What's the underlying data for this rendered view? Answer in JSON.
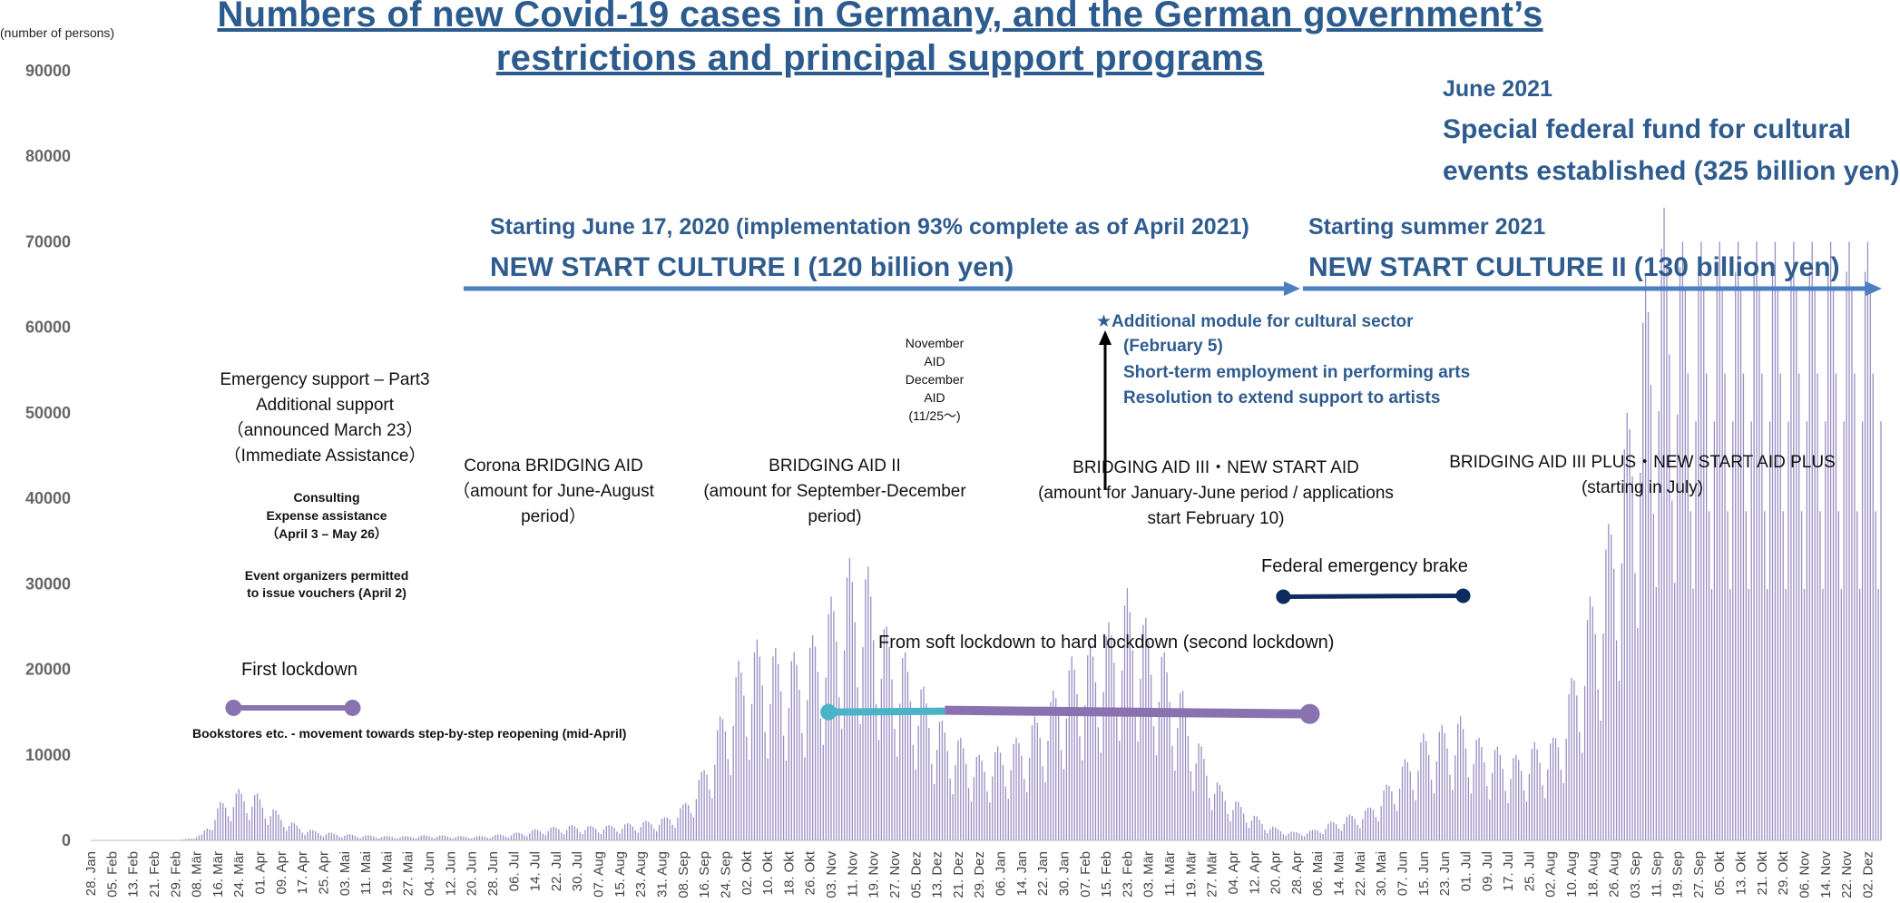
{
  "title_line1": "Numbers of new Covid-19 cases in Germany, and the German government’s",
  "title_line2": "restrictions and principal support programs",
  "y_unit_label": "(number of persons)",
  "colors": {
    "bars": "#9b8fc4",
    "title": "#2c5b8e",
    "program_text": "#2f5c8f",
    "arrow": "#4a7fc1",
    "lockdown_purple": "#8a72b0",
    "soft_lockdown_teal": "#4bb3c8",
    "emergency_brake": "#0d2b5e",
    "axis_text": "#666666"
  },
  "annotations": {
    "nsc1_line1": "Starting June 17, 2020 (implementation 93% complete as of April 2021)",
    "nsc1_line2": "NEW START CULTURE I (120 billion yen)",
    "nsc2_line1": "Starting summer 2021",
    "nsc2_line2": "NEW START CULTURE II (130 billion yen)",
    "fund_line1": "June 2021",
    "fund_line2": "Special federal fund for cultural",
    "fund_line3": "events established (325 billion yen)",
    "module_line1": "★Additional module for cultural sector",
    "module_line2": "(February 5)",
    "module_line3": "Short-term employment in performing arts",
    "module_line4": "Resolution to extend support to artists",
    "nov_aid_1": "November",
    "nov_aid_2": "AID",
    "nov_aid_3": "December",
    "nov_aid_4": "AID",
    "nov_aid_5": "(11/25～)",
    "emerg_1": "Emergency support – Part3",
    "emerg_2": "Additional support",
    "emerg_3": "（announced March 23）",
    "emerg_4": "（Immediate Assistance）",
    "consult_1": "Consulting",
    "consult_2": "Expense assistance",
    "consult_3": "（April 3 – May 26）",
    "vouch_1": "Event organizers permitted",
    "vouch_2": "to issue vouchers (April 2)",
    "corona_1": "Corona BRIDGING AID",
    "corona_2": "（amount for June-August",
    "corona_3": "period）",
    "bridge2_1": "BRIDGING AID II",
    "bridge2_2": "(amount for September-December",
    "bridge2_3": "period)",
    "bridge3_1": "BRIDGING AID III・NEW START AID",
    "bridge3_2": "(amount for January-June period / applications",
    "bridge3_3": "start February 10)",
    "bridge3p_1": "BRIDGING AID III PLUS・NEW START AID PLUS",
    "bridge3p_2": "(starting in July)",
    "brake": "Federal emergency brake",
    "soft_hard": "From soft lockdown to hard lockdown (second lockdown)",
    "first_lockdown": "First lockdown",
    "bookstores": "Bookstores etc. - movement towards step-by-step reopening (mid-April)"
  },
  "chart_data": {
    "type": "bar",
    "title": "Numbers of new Covid-19 cases in Germany, and the German government’s restrictions and principal support programs",
    "ylabel": "(number of persons)",
    "ylim": [
      0,
      90000
    ],
    "yticks": [
      0,
      10000,
      20000,
      30000,
      40000,
      50000,
      60000,
      70000,
      80000,
      90000
    ],
    "grid": false,
    "legend": "none",
    "start_date": "2020-01-28",
    "end_date": "2021-12-05",
    "xtick_labels": [
      "28. Jan",
      "05. Feb",
      "13. Feb",
      "21. Feb",
      "29. Feb",
      "08. Mär",
      "16. Mär",
      "24. Mär",
      "01. Apr",
      "09. Apr",
      "17. Apr",
      "25. Apr",
      "03. Mai",
      "11. Mai",
      "19. Mai",
      "27. Mai",
      "04. Jun",
      "12. Jun",
      "20. Jun",
      "28. Jun",
      "06. Jul",
      "14. Jul",
      "22. Jul",
      "30. Jul",
      "07. Aug",
      "15. Aug",
      "23. Aug",
      "31. Aug",
      "08. Sep",
      "16. Sep",
      "24. Sep",
      "02. Okt",
      "10. Okt",
      "18. Okt",
      "26. Okt",
      "03. Nov",
      "11. Nov",
      "19. Nov",
      "27. Nov",
      "05. Dez",
      "13. Dez",
      "21. Dez",
      "29. Dez",
      "06. Jan",
      "14. Jan",
      "22. Jan",
      "30. Jan",
      "07. Feb",
      "15. Feb",
      "23. Feb",
      "03. Mär",
      "11. Mär",
      "19. Mär",
      "27. Mär",
      "04. Apr",
      "12. Apr",
      "20. Apr",
      "28. Apr",
      "06. Mai",
      "14. Mai",
      "22. Mai",
      "30. Mai",
      "07. Jun",
      "15. Jun",
      "23. Jun",
      "01. Jul",
      "09. Jul",
      "17. Jul",
      "25. Jul",
      "02. Aug",
      "10. Aug",
      "18. Aug",
      "26. Aug",
      "03. Sep",
      "11. Sep",
      "19. Sep",
      "27. Sep",
      "05. Okt",
      "13. Okt",
      "21. Okt",
      "29. Okt",
      "06. Nov",
      "14. Nov",
      "22. Nov",
      "02. Dez"
    ],
    "weekly_peak_values": [
      0,
      0,
      0,
      0,
      0,
      100,
      700,
      4500,
      6000,
      5500,
      3500,
      2000,
      1200,
      900,
      700,
      600,
      500,
      500,
      600,
      600,
      500,
      500,
      700,
      900,
      1300,
      1600,
      1800,
      1700,
      1800,
      2000,
      2300,
      2700,
      4200,
      8000,
      14500,
      21000,
      23500,
      22500,
      22000,
      24000,
      28500,
      33000,
      32000,
      25000,
      22000,
      18000,
      14000,
      12000,
      10000,
      11000,
      12000,
      14500,
      17500,
      21500,
      23000,
      25500,
      29500,
      26000,
      22000,
      17500,
      11000,
      6500,
      4500,
      2800,
      1500,
      1000,
      1200,
      2200,
      3000,
      3800,
      6500,
      9500,
      12500,
      13500,
      14500,
      12000,
      11000,
      10000,
      11500,
      12000,
      19000,
      28500,
      37000,
      50000,
      66000,
      74000,
      70000
    ],
    "series": [
      {
        "name": "New cases",
        "values": "see weekly_peak_values"
      }
    ],
    "periods": [
      {
        "label": "First lockdown",
        "start": "2020-03-22",
        "end": "2020-05-06",
        "level": 15500
      },
      {
        "label": "From soft lockdown to hard lockdown (second lockdown)",
        "start": "2020-11-02",
        "end": "2021-05-03",
        "level": 15000
      },
      {
        "label": "Federal emergency brake",
        "start": "2021-04-23",
        "end": "2021-06-30",
        "level": 28500
      }
    ]
  }
}
